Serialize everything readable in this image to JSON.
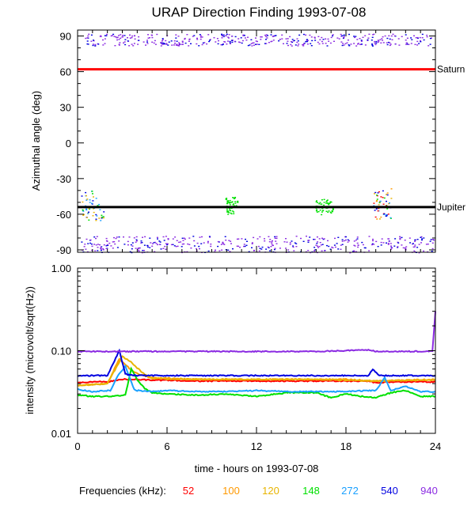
{
  "title": "URAP Direction Finding  1993-07-08",
  "xlabel": "time - hours on 1993-07-08",
  "legend_label": "Frequencies (kHz):",
  "chart_data": [
    {
      "type": "scatter",
      "ylabel": "Azimuthal angle (deg)",
      "x_range": [
        0,
        24
      ],
      "y_range": [
        -92,
        95
      ],
      "x_ticks": [
        "0",
        "6",
        "12",
        "18",
        "24"
      ],
      "y_ticks": [
        {
          "value": 90,
          "label": "90"
        },
        {
          "value": 60,
          "label": "60"
        },
        {
          "value": 30,
          "label": "30"
        },
        {
          "value": 0,
          "label": "0"
        },
        {
          "value": -30,
          "label": "-30"
        },
        {
          "value": -60,
          "label": "-60"
        },
        {
          "value": -90,
          "label": "-90"
        }
      ],
      "reference_lines": [
        {
          "name": "Saturn",
          "value": 62,
          "color": "#ff0000"
        },
        {
          "name": "Jupiter",
          "value": -54,
          "color": "#000000"
        }
      ],
      "point_groups": [
        {
          "desc": "band near +90",
          "x": [
            0.3,
            23.8
          ],
          "y": [
            82,
            92
          ],
          "colors": [
            "#8b2be2",
            "#8b2be2",
            "#0000e0"
          ]
        },
        {
          "desc": "band near -90",
          "x": [
            0.1,
            23.9
          ],
          "y": [
            -92,
            -78
          ],
          "colors": [
            "#8b2be2",
            "#0000e0",
            "#8b2be2"
          ]
        },
        {
          "desc": "cluster",
          "x": [
            0.2,
            1.8
          ],
          "y": [
            -66,
            -38
          ],
          "colors": [
            "#00e000",
            "#1aa0ff",
            "#0000e0",
            "#e8b400"
          ]
        },
        {
          "desc": "cluster",
          "x": [
            9.9,
            10.7
          ],
          "y": [
            -60,
            -45
          ],
          "colors": [
            "#00e000"
          ]
        },
        {
          "desc": "cluster",
          "x": [
            15.9,
            17.1
          ],
          "y": [
            -60,
            -47
          ],
          "colors": [
            "#00e000"
          ]
        },
        {
          "desc": "cluster",
          "x": [
            19.8,
            21.1
          ],
          "y": [
            -64,
            -38
          ],
          "colors": [
            "#00e000",
            "#e8b400",
            "#ff9900",
            "#1aa0ff",
            "#0000e0",
            "#ff0000"
          ]
        }
      ]
    },
    {
      "type": "line",
      "ylabel": "intensity (microvolt/sqrt(Hz))",
      "y_scale": "log",
      "x_range": [
        0,
        24
      ],
      "y_range": [
        0.01,
        1.0
      ],
      "x_ticks": [
        "0",
        "6",
        "12",
        "18",
        "24"
      ],
      "y_ticks": [
        {
          "value": 1.0,
          "label": "1.00"
        },
        {
          "value": 0.1,
          "label": "0.10"
        },
        {
          "value": 0.01,
          "label": "0.01"
        }
      ],
      "series": [
        {
          "name": "52",
          "color": "#ff0000",
          "x": [
            0,
            1,
            2,
            3,
            4,
            5,
            6,
            8,
            10,
            12,
            14,
            16,
            18,
            19.5,
            20,
            21,
            22,
            23,
            24
          ],
          "y": [
            0.041,
            0.042,
            0.042,
            0.045,
            0.045,
            0.044,
            0.044,
            0.043,
            0.043,
            0.043,
            0.043,
            0.043,
            0.043,
            0.043,
            0.041,
            0.042,
            0.042,
            0.042,
            0.042
          ]
        },
        {
          "name": "100",
          "color": "#ff9900",
          "x": [
            0,
            2,
            2.8,
            3.3,
            3.8,
            4.4,
            5,
            8,
            12,
            16,
            18,
            20,
            22,
            24
          ],
          "y": [
            0.038,
            0.04,
            0.08,
            0.065,
            0.055,
            0.05,
            0.047,
            0.045,
            0.045,
            0.045,
            0.045,
            0.043,
            0.044,
            0.045
          ]
        },
        {
          "name": "120",
          "color": "#e8b400",
          "x": [
            0,
            2,
            3,
            3.5,
            4,
            4.5,
            5,
            8,
            12,
            16,
            20,
            24
          ],
          "y": [
            0.038,
            0.04,
            0.085,
            0.075,
            0.062,
            0.052,
            0.046,
            0.045,
            0.045,
            0.045,
            0.043,
            0.044
          ]
        },
        {
          "name": "148",
          "color": "#00e000",
          "x": [
            0,
            1,
            2,
            3.2,
            3.6,
            4,
            4.5,
            5,
            6,
            8,
            10,
            12,
            14,
            16,
            17,
            18,
            19,
            20,
            21,
            22,
            23,
            24
          ],
          "y": [
            0.029,
            0.028,
            0.028,
            0.029,
            0.06,
            0.045,
            0.035,
            0.031,
            0.03,
            0.029,
            0.03,
            0.028,
            0.031,
            0.031,
            0.027,
            0.03,
            0.028,
            0.027,
            0.031,
            0.033,
            0.028,
            0.028
          ]
        },
        {
          "name": "272",
          "color": "#1aa0ff",
          "x": [
            0,
            1,
            2.2,
            2.7,
            3.2,
            3.8,
            4,
            5,
            6,
            8,
            10,
            12,
            14,
            16,
            18,
            19.5,
            20,
            20.6,
            21,
            22,
            23,
            24
          ],
          "y": [
            0.034,
            0.032,
            0.033,
            0.05,
            0.065,
            0.034,
            0.033,
            0.032,
            0.033,
            0.032,
            0.032,
            0.033,
            0.032,
            0.032,
            0.032,
            0.033,
            0.033,
            0.047,
            0.033,
            0.037,
            0.032,
            0.032
          ]
        },
        {
          "name": "540",
          "color": "#0000e0",
          "x": [
            0,
            1,
            2,
            2.8,
            3.2,
            4,
            6,
            8,
            12,
            16,
            18,
            19.5,
            19.8,
            20.2,
            21,
            22,
            24
          ],
          "y": [
            0.05,
            0.05,
            0.05,
            0.1,
            0.052,
            0.05,
            0.05,
            0.05,
            0.05,
            0.05,
            0.05,
            0.05,
            0.06,
            0.05,
            0.05,
            0.05,
            0.05
          ]
        },
        {
          "name": "940",
          "color": "#8b2be2",
          "x": [
            0,
            2,
            4,
            8,
            12,
            16,
            19.5,
            20,
            21,
            23.8,
            24
          ],
          "y": [
            0.098,
            0.098,
            0.098,
            0.098,
            0.098,
            0.098,
            0.102,
            0.098,
            0.098,
            0.098,
            0.3
          ]
        }
      ]
    }
  ]
}
